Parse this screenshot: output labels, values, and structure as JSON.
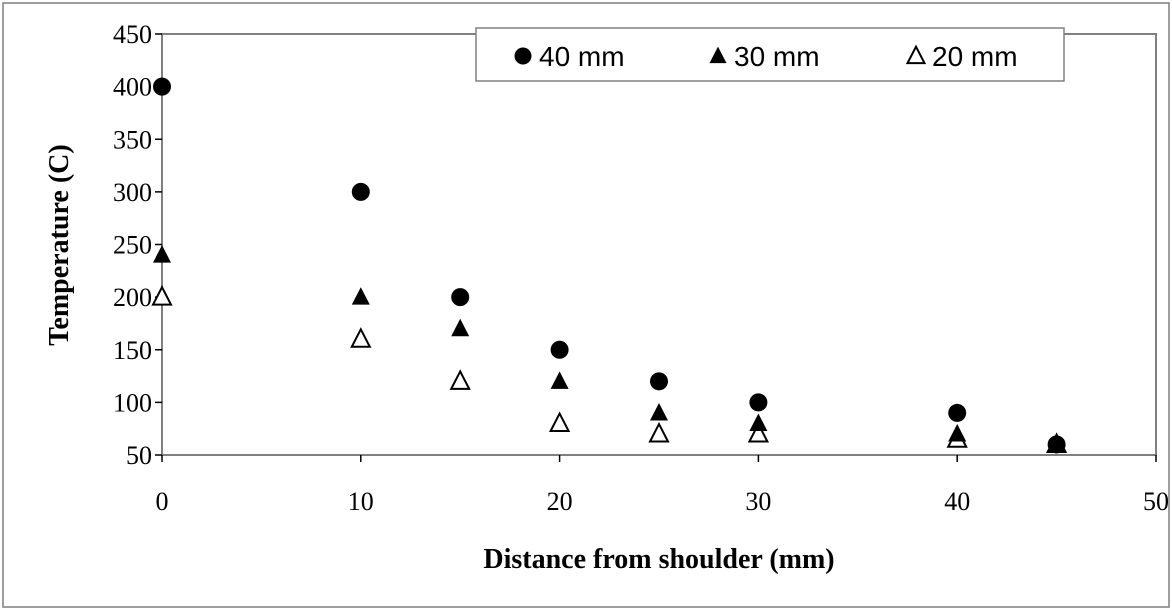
{
  "chart_data": {
    "type": "scatter",
    "title": "",
    "xlabel": "Distance from shoulder (mm)",
    "ylabel": "Temperature (C)",
    "xlim": [
      0,
      50
    ],
    "ylim": [
      50,
      450
    ],
    "xticks": [
      0,
      10,
      20,
      30,
      40,
      50
    ],
    "yticks": [
      50,
      100,
      150,
      200,
      250,
      300,
      350,
      400,
      450
    ],
    "grid": false,
    "legend_position": "top-right",
    "series": [
      {
        "name": "40 mm",
        "marker": "filled-circle",
        "color": "#000000",
        "points": [
          [
            0,
            400
          ],
          [
            10,
            300
          ],
          [
            15,
            200
          ],
          [
            20,
            150
          ],
          [
            25,
            120
          ],
          [
            30,
            100
          ],
          [
            40,
            90
          ],
          [
            45,
            60
          ]
        ]
      },
      {
        "name": "30 mm",
        "marker": "filled-triangle",
        "color": "#000000",
        "points": [
          [
            0,
            240
          ],
          [
            10,
            200
          ],
          [
            15,
            170
          ],
          [
            20,
            120
          ],
          [
            25,
            90
          ],
          [
            30,
            80
          ],
          [
            40,
            70
          ],
          [
            45,
            60
          ]
        ]
      },
      {
        "name": "20 mm",
        "marker": "hollow-triangle",
        "color": "#000000",
        "points": [
          [
            0,
            200
          ],
          [
            10,
            160
          ],
          [
            15,
            120
          ],
          [
            20,
            80
          ],
          [
            25,
            70
          ],
          [
            30,
            70
          ],
          [
            40,
            65
          ],
          [
            45,
            60
          ]
        ]
      }
    ]
  }
}
